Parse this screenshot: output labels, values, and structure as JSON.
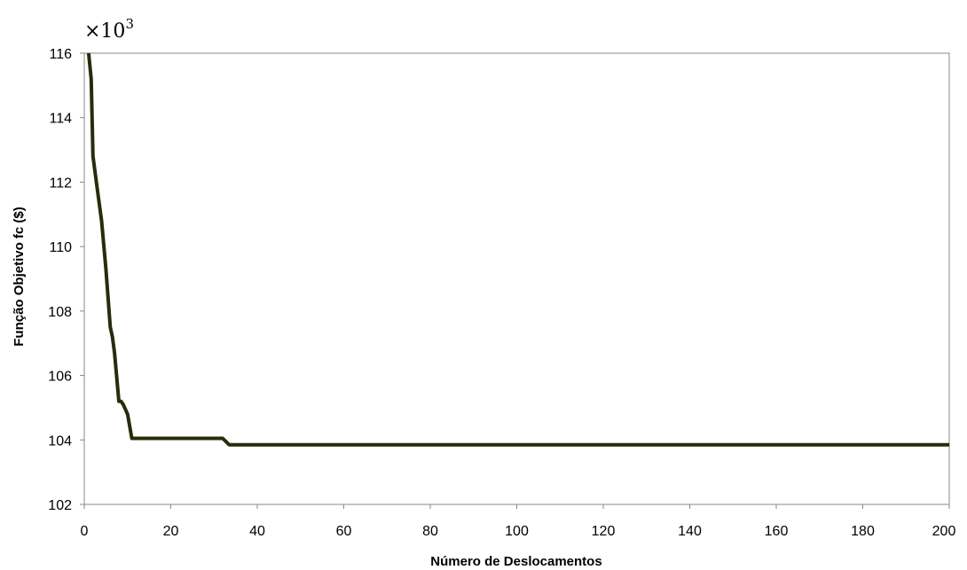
{
  "chart_data": {
    "type": "line",
    "title": "",
    "xlabel": "Número de Deslocamentos",
    "ylabel": "Função Objetivo fc ($)",
    "y_multiplier_base": "×10",
    "y_multiplier_exp": "3",
    "xlim": [
      0,
      200
    ],
    "ylim": [
      102,
      116
    ],
    "x_ticks": [
      0,
      20,
      40,
      60,
      80,
      100,
      120,
      140,
      160,
      180,
      200
    ],
    "y_ticks": [
      102,
      104,
      106,
      108,
      110,
      112,
      114,
      116
    ],
    "grid": false,
    "legend": "none",
    "series": [
      {
        "color": "#2b2b0a",
        "x": [
          1,
          1.6,
          2,
          3,
          4,
          5,
          6,
          6.5,
          7,
          8,
          8.5,
          9,
          10,
          11,
          11.5,
          20,
          32,
          33.5,
          34,
          60,
          100,
          150,
          200
        ],
        "y": [
          116,
          115.2,
          112.8,
          111.8,
          110.8,
          109.3,
          107.5,
          107.2,
          106.7,
          105.2,
          105.2,
          105.1,
          104.8,
          104.05,
          104.05,
          104.05,
          104.05,
          103.85,
          103.85,
          103.85,
          103.85,
          103.85,
          103.85
        ]
      }
    ]
  }
}
